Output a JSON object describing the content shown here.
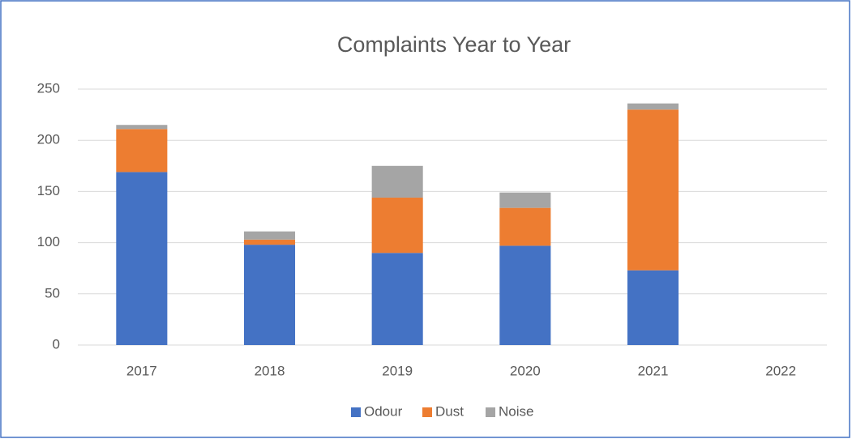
{
  "chart_data": {
    "type": "stacked_bar",
    "title": "Complaints Year to Year",
    "categories": [
      "2017",
      "2018",
      "2019",
      "2020",
      "2021",
      "2022"
    ],
    "series": [
      {
        "name": "Odour",
        "color": "#4472c4",
        "values": [
          169,
          98,
          90,
          97,
          73,
          null
        ]
      },
      {
        "name": "Dust",
        "color": "#ed7d31",
        "values": [
          42,
          5,
          54,
          37,
          157,
          null
        ]
      },
      {
        "name": "Noise",
        "color": "#a5a5a5",
        "values": [
          4,
          8,
          31,
          15,
          6,
          null
        ]
      }
    ],
    "ylim": [
      0,
      250
    ],
    "yticks": [
      0,
      50,
      100,
      150,
      200,
      250
    ],
    "grid": true,
    "legend": "bottom"
  }
}
